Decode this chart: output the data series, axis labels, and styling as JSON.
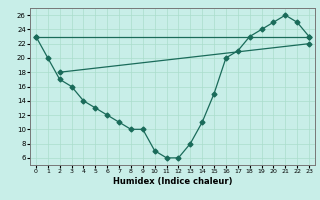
{
  "xlabel": "Humidex (Indice chaleur)",
  "bg_color": "#c8eee8",
  "line_color": "#1a6b5a",
  "xlim": [
    -0.5,
    23.5
  ],
  "ylim": [
    5,
    27
  ],
  "xticks": [
    0,
    1,
    2,
    3,
    4,
    5,
    6,
    7,
    8,
    9,
    10,
    11,
    12,
    13,
    14,
    15,
    16,
    17,
    18,
    19,
    20,
    21,
    22,
    23
  ],
  "yticks": [
    6,
    8,
    10,
    12,
    14,
    16,
    18,
    20,
    22,
    24,
    26
  ],
  "curve1_x": [
    0,
    1,
    2,
    3,
    4,
    5,
    6,
    7,
    8,
    9,
    10,
    11,
    12,
    13,
    14,
    15,
    16,
    17,
    18,
    19,
    20,
    21,
    22,
    23
  ],
  "curve1_y": [
    23,
    20,
    17,
    16,
    14,
    13,
    12,
    11,
    10,
    10,
    7,
    6,
    6,
    8,
    11,
    15,
    20,
    21,
    23,
    24,
    25,
    26,
    25,
    23
  ],
  "curve2_x": [
    0,
    23
  ],
  "curve2_y": [
    23,
    23
  ],
  "curve3_x": [
    2,
    23
  ],
  "curve3_y": [
    18,
    22
  ],
  "grid_color": "#aaddcc",
  "marker": "D",
  "markersize": 2.5,
  "linewidth": 0.9
}
